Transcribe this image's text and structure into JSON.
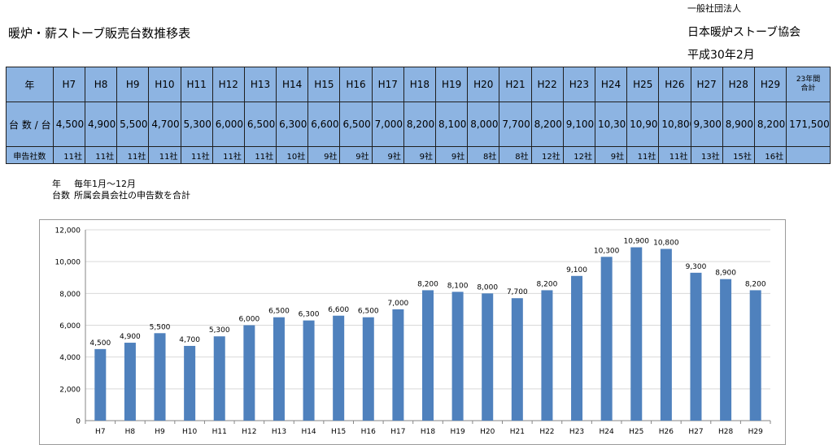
{
  "title": "暖炉・薪ストーブ販売台数推移表",
  "org": {
    "small": "一般社団法人",
    "name": "日本暖炉ストーブ協会",
    "date": "平成30年2月"
  },
  "table": {
    "row1_label": "年",
    "row2_label": "台 数 / 台",
    "row3_label": "申告社数",
    "years": [
      "H7",
      "H8",
      "H9",
      "H10",
      "H11",
      "H12",
      "H13",
      "H14",
      "H15",
      "H16",
      "H17",
      "H18",
      "H19",
      "H20",
      "H21",
      "H22",
      "H23",
      "H24",
      "H25",
      "H26",
      "H27",
      "H28",
      "H29"
    ],
    "units": [
      "4,500",
      "4,900",
      "5,500",
      "4,700",
      "5,300",
      "6,000",
      "6,500",
      "6,300",
      "6,600",
      "6,500",
      "7,000",
      "8,200",
      "8,100",
      "8,000",
      "7,700",
      "8,200",
      "9,100",
      "10,300",
      "10,900",
      "10,800",
      "9,300",
      "8,900",
      "8,200"
    ],
    "companies": [
      "11社",
      "11社",
      "11社",
      "11社",
      "11社",
      "11社",
      "11社",
      "10社",
      "9社",
      "9社",
      "9社",
      "9社",
      "9社",
      "8社",
      "8社",
      "12社",
      "12社",
      "9社",
      "11社",
      "11社",
      "13社",
      "15社",
      "16社"
    ],
    "total_label_1": "23年間",
    "total_label_2": "合計",
    "total_value": "171,500",
    "total_companies": ""
  },
  "notes": [
    {
      "key": "年",
      "text": "毎年1月～12月"
    },
    {
      "key": "台数",
      "text": "所属会員会社の申告数を合計"
    }
  ],
  "chart_data": {
    "type": "bar",
    "categories": [
      "H7",
      "H8",
      "H9",
      "H10",
      "H11",
      "H12",
      "H13",
      "H14",
      "H15",
      "H16",
      "H17",
      "H18",
      "H19",
      "H20",
      "H21",
      "H22",
      "H23",
      "H24",
      "H25",
      "H26",
      "H27",
      "H28",
      "H29"
    ],
    "values": [
      4500,
      4900,
      5500,
      4700,
      5300,
      6000,
      6500,
      6300,
      6600,
      6500,
      7000,
      8200,
      8100,
      8000,
      7700,
      8200,
      9100,
      10300,
      10900,
      10800,
      9300,
      8900,
      8200
    ],
    "data_labels": [
      "4,500",
      "4,900",
      "5,500",
      "4,700",
      "5,300",
      "6,000",
      "6,500",
      "6,300",
      "6,600",
      "6,500",
      "7,000",
      "8,200",
      "8,100",
      "8,000",
      "7,700",
      "8,200",
      "9,100",
      "10,300",
      "10,900",
      "10,800",
      "9,300",
      "8,900",
      "8,200"
    ],
    "yticks": [
      0,
      2000,
      4000,
      6000,
      8000,
      10000,
      12000
    ],
    "ytick_labels": [
      "0",
      "2,000",
      "4,000",
      "6,000",
      "8,000",
      "10,000",
      "12,000"
    ],
    "ylim": [
      0,
      12000
    ],
    "grid": true,
    "legend": "none",
    "bar_color": "#4f81bd",
    "grid_color": "#d9d9d9"
  }
}
